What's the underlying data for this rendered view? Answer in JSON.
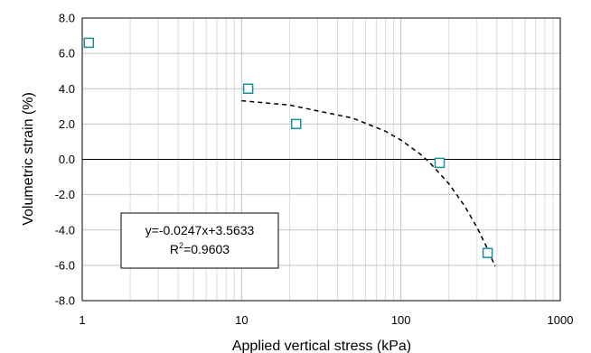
{
  "chart_data": {
    "type": "scatter",
    "title": "",
    "xlabel": "Applied vertical stress (kPa)",
    "ylabel": "Volumetric strain (%)",
    "x_scale": "log",
    "xlim": [
      1,
      1000
    ],
    "ylim": [
      -8,
      8
    ],
    "grid": true,
    "x_ticks": [
      1,
      10,
      100,
      1000
    ],
    "x_tick_labels": [
      "1",
      "10",
      "100",
      "1000"
    ],
    "y_ticks": [
      8,
      6,
      4,
      2,
      0,
      -2,
      -4,
      -6,
      -8
    ],
    "y_tick_labels": [
      "8.0",
      "6.0",
      "4.0",
      "2.0",
      "0.0",
      "-2.0",
      "-4.0",
      "-6.0",
      "-8.0"
    ],
    "marker_color": "#1b8e9a",
    "points": [
      {
        "x": 1.1,
        "y": 6.6
      },
      {
        "x": 11,
        "y": 4.0
      },
      {
        "x": 22,
        "y": 2.0
      },
      {
        "x": 175,
        "y": -0.2
      },
      {
        "x": 350,
        "y": -5.3
      }
    ],
    "trendline": {
      "style": "dashed",
      "equation": "y=-0.0247x+3.5633",
      "r2_prefix": "R",
      "r2_sup": "2",
      "r2_value": "=0.9603",
      "points": [
        {
          "x": 10,
          "y": 3.32
        },
        {
          "x": 20,
          "y": 3.07
        },
        {
          "x": 50,
          "y": 2.33
        },
        {
          "x": 80,
          "y": 1.59
        },
        {
          "x": 100,
          "y": 1.09
        },
        {
          "x": 130,
          "y": 0.35
        },
        {
          "x": 150,
          "y": -0.14
        },
        {
          "x": 200,
          "y": -1.38
        },
        {
          "x": 250,
          "y": -2.61
        },
        {
          "x": 300,
          "y": -3.85
        },
        {
          "x": 350,
          "y": -5.08
        },
        {
          "x": 390,
          "y": -6.07
        }
      ]
    }
  }
}
